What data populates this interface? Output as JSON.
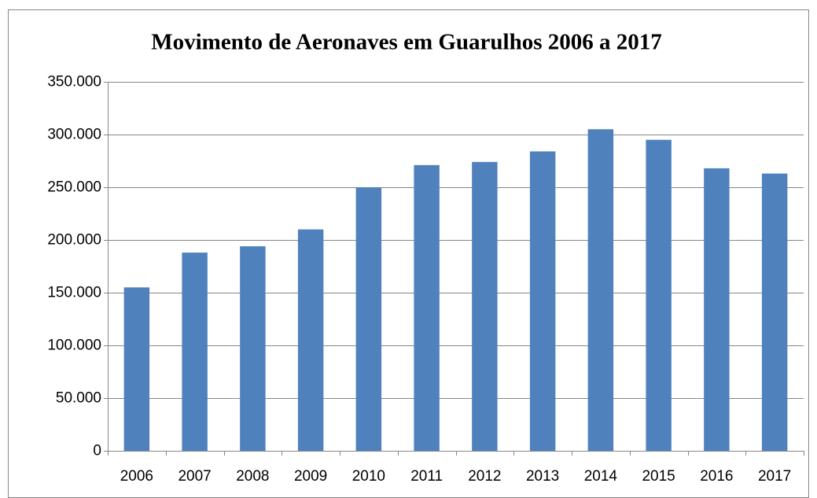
{
  "chart_data": {
    "type": "bar",
    "title": "Movimento de Aeronaves em Guarulhos 2006 a 2017",
    "categories": [
      "2006",
      "2007",
      "2008",
      "2009",
      "2010",
      "2011",
      "2012",
      "2013",
      "2014",
      "2015",
      "2016",
      "2017"
    ],
    "values": [
      155000,
      188000,
      194000,
      210000,
      250000,
      271000,
      274000,
      284000,
      305000,
      295000,
      268000,
      263000
    ],
    "color": "#4f81bd",
    "ylim": [
      0,
      350000
    ],
    "yticks": [
      0,
      {
        "value": 50000,
        "label": "50.000"
      },
      {
        "value": 100000,
        "label": "100.000"
      },
      {
        "value": 150000,
        "label": "150.000"
      },
      {
        "value": 200000,
        "label": "200.000"
      },
      {
        "value": 250000,
        "label": "250.000"
      },
      {
        "value": 300000,
        "label": "300.000"
      },
      {
        "value": 350000,
        "label": "350.000"
      }
    ],
    "grid": true
  }
}
